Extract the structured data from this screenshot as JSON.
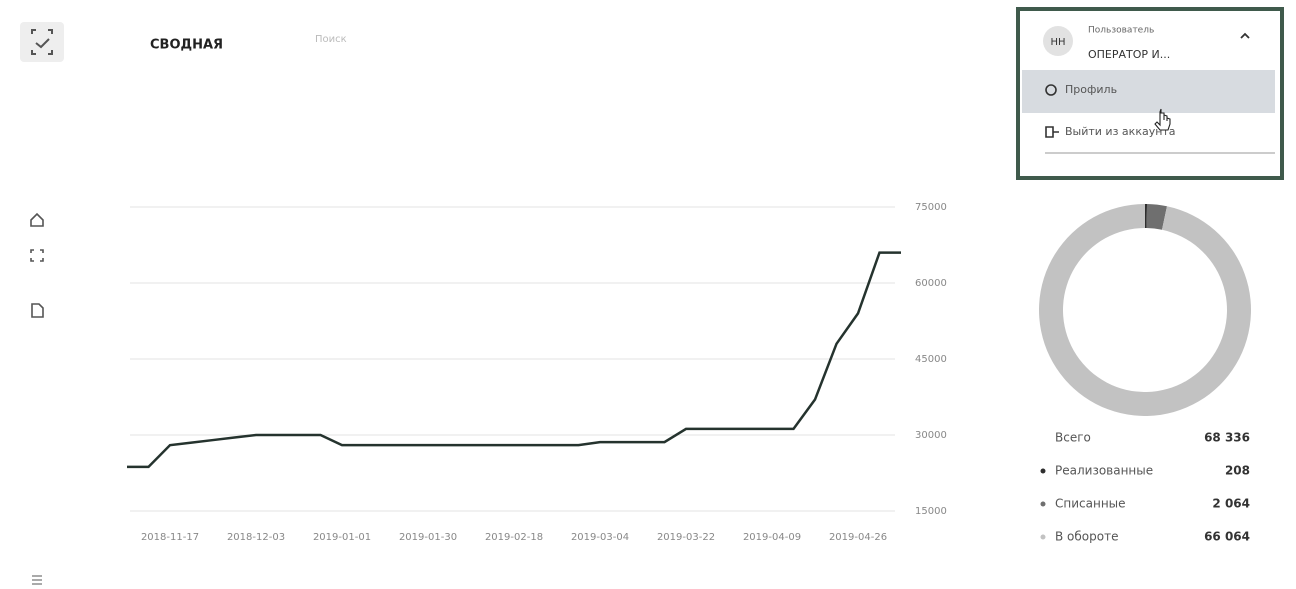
{
  "header": {
    "tabs": [
      "СВОДНАЯ",
      "Поиск"
    ]
  },
  "user_menu": {
    "avatar": "НН",
    "role": "Пользователь",
    "name": "ОПЕРАТОР И...",
    "items": [
      "Профиль",
      "Выйти из аккаунта"
    ]
  },
  "chart_data": [
    {
      "type": "line",
      "categories": [
        null,
        null,
        "2018-11-17",
        null,
        null,
        null,
        "2018-12-03",
        null,
        null,
        null,
        "2019-01-01",
        null,
        null,
        null,
        "2019-01-30",
        null,
        null,
        null,
        "2019-02-18",
        null,
        null,
        null,
        "2019-03-04",
        null,
        null,
        null,
        "2019-03-22",
        null,
        null,
        null,
        "2019-04-09",
        null,
        null,
        null,
        "2019-04-26",
        null,
        null
      ],
      "series": [
        {
          "color": "#25332e",
          "values": [
            23700,
            23700,
            28000,
            28500,
            29000,
            29500,
            30000,
            30000,
            30000,
            30000,
            28000,
            28000,
            28000,
            28000,
            28000,
            28000,
            28000,
            28000,
            28000,
            28000,
            28000,
            28000,
            28600,
            28600,
            28600,
            28600,
            31200,
            31200,
            31200,
            31200,
            31200,
            31200,
            37000,
            48000,
            54000,
            66000,
            66000
          ]
        }
      ],
      "ylim": [
        15000,
        75000
      ],
      "yticks": [
        15000,
        30000,
        45000,
        60000,
        75000
      ],
      "grid": true,
      "y_axis_side": "right"
    },
    {
      "type": "pie",
      "categories": [
        "Реализованные",
        "Списанные",
        "В обороте"
      ],
      "values": [
        208,
        2064,
        66064
      ],
      "value_labels": [
        "208",
        "2 064",
        "66 064"
      ],
      "colors": [
        "#2e2e2e",
        "#6f6f6f",
        "#c2c2c2"
      ],
      "total_title": "Всего",
      "total": {
        "value": 68336,
        "label": "68 336"
      }
    }
  ]
}
